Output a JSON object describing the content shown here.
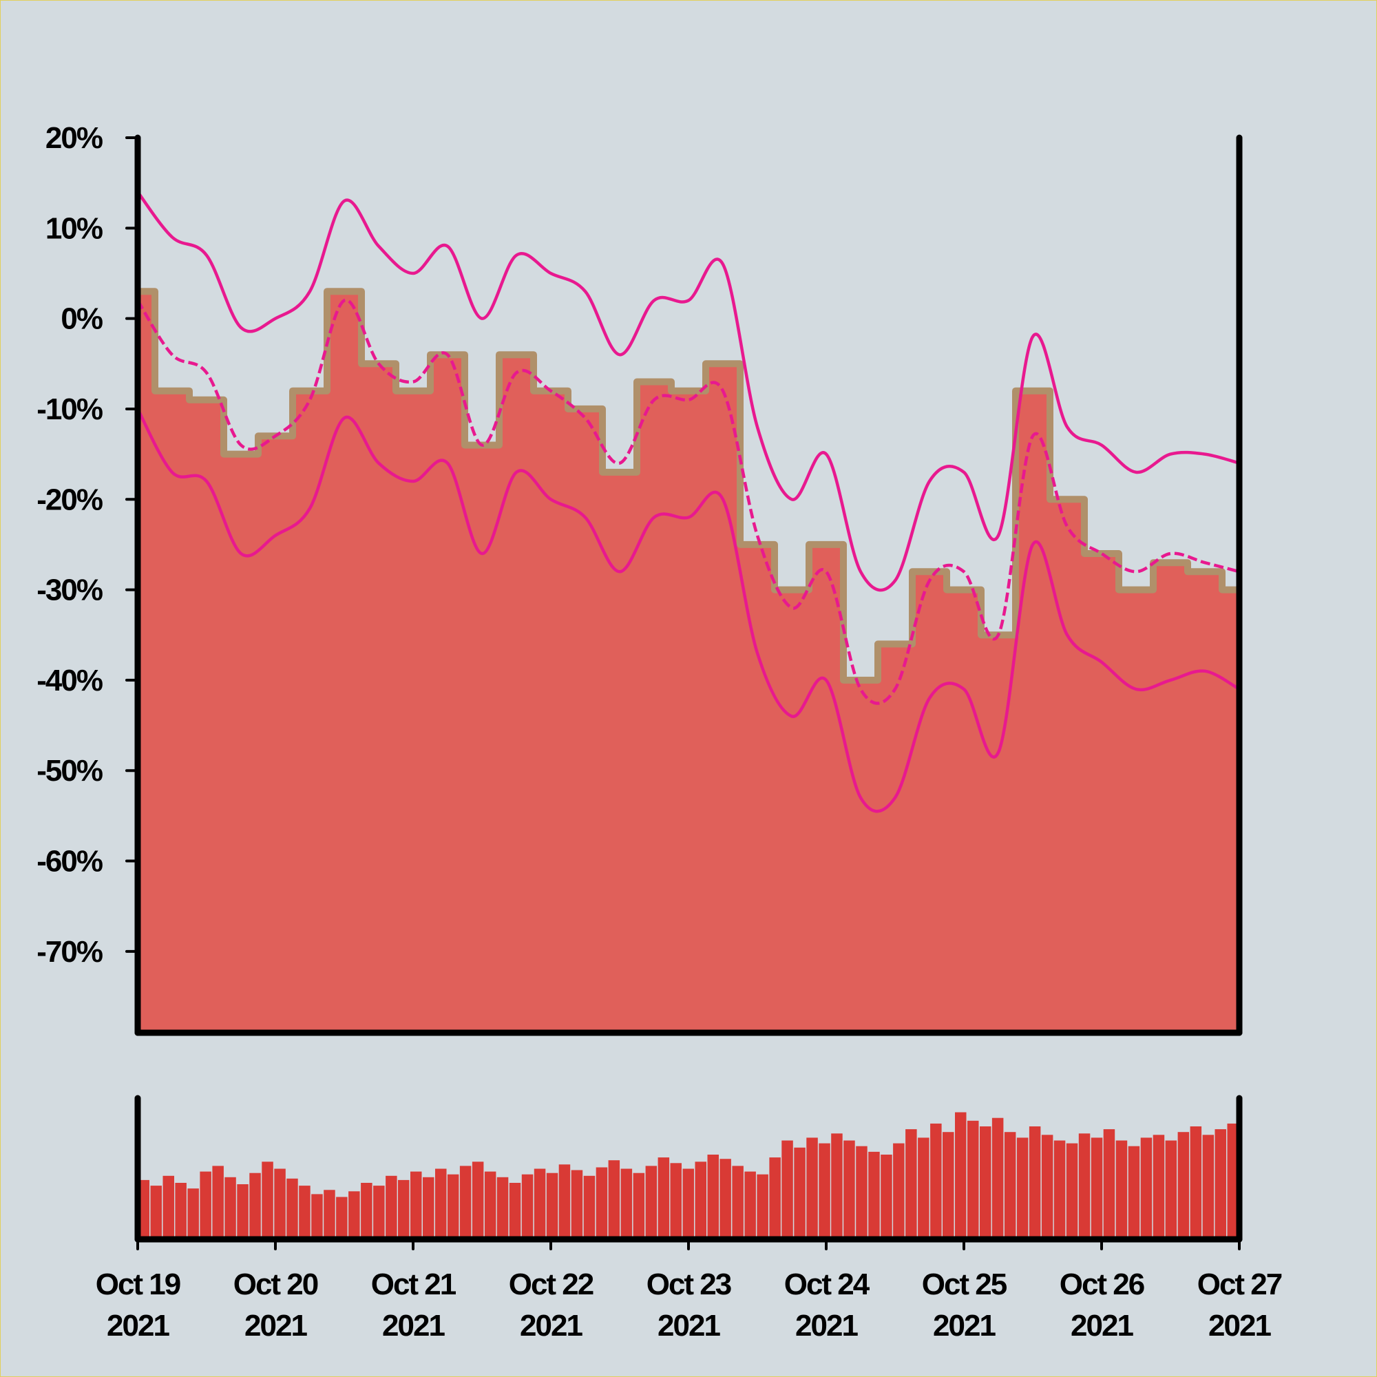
{
  "chart_data": {
    "type": "area",
    "title": "",
    "xlabel": "",
    "ylabel": "",
    "grid": false,
    "legend": "none",
    "y_ticks": [
      "20%",
      "10%",
      "0%",
      "-10%",
      "-20%",
      "-30%",
      "-40%",
      "-50%",
      "-60%",
      "-70%"
    ],
    "ylim": [
      -79,
      20
    ],
    "x_ticks": [
      {
        "line1": "Oct 19",
        "line2": "2021"
      },
      {
        "line1": "Oct 20",
        "line2": "2021"
      },
      {
        "line1": "Oct 21",
        "line2": "2021"
      },
      {
        "line1": "Oct 22",
        "line2": "2021"
      },
      {
        "line1": "Oct 23",
        "line2": "2021"
      },
      {
        "line1": "Oct 24",
        "line2": "2021"
      },
      {
        "line1": "Oct 25",
        "line2": "2021"
      },
      {
        "line1": "Oct 26",
        "line2": "2021"
      },
      {
        "line1": "Oct 27",
        "line2": "2021"
      }
    ],
    "xlim": [
      "2021-10-19",
      "2021-10-27"
    ],
    "x": [
      "2021-10-19 00:00",
      "2021-10-19 06:00",
      "2021-10-19 12:00",
      "2021-10-19 18:00",
      "2021-10-20 00:00",
      "2021-10-20 06:00",
      "2021-10-20 12:00",
      "2021-10-20 18:00",
      "2021-10-21 00:00",
      "2021-10-21 06:00",
      "2021-10-21 12:00",
      "2021-10-21 18:00",
      "2021-10-22 00:00",
      "2021-10-22 06:00",
      "2021-10-22 12:00",
      "2021-10-22 18:00",
      "2021-10-23 00:00",
      "2021-10-23 06:00",
      "2021-10-23 12:00",
      "2021-10-23 18:00",
      "2021-10-24 00:00",
      "2021-10-24 06:00",
      "2021-10-24 12:00",
      "2021-10-24 18:00",
      "2021-10-25 00:00",
      "2021-10-25 06:00",
      "2021-10-25 12:00",
      "2021-10-25 18:00",
      "2021-10-26 00:00",
      "2021-10-26 06:00",
      "2021-10-26 12:00",
      "2021-10-26 18:00",
      "2021-10-27 00:00"
    ],
    "series": [
      {
        "role": "upper band",
        "values": [
          14,
          9,
          7,
          -1,
          0,
          3,
          13,
          8,
          5,
          8,
          0,
          7,
          5,
          3,
          -4,
          2,
          2,
          6,
          -12,
          -20,
          -15,
          -28,
          -29,
          -18,
          -17,
          -24,
          -2,
          -12,
          -14,
          -17,
          -15,
          -15,
          -16
        ],
        "line": "solid",
        "color": "#e8198f"
      },
      {
        "role": "middle line",
        "values": [
          2,
          -4,
          -6,
          -14,
          -13,
          -9,
          2,
          -5,
          -7,
          -4,
          -14,
          -6,
          -8,
          -11,
          -16,
          -9,
          -9,
          -8,
          -24,
          -32,
          -28,
          -41,
          -41,
          -29,
          -28,
          -35,
          -13,
          -23,
          -26,
          -28,
          -26,
          -27,
          -28
        ],
        "line": "dashed",
        "color": "#e8198f"
      },
      {
        "role": "lower band",
        "values": [
          -10,
          -17,
          -18,
          -26,
          -24,
          -21,
          -11,
          -16,
          -18,
          -16,
          -26,
          -17,
          -20,
          -22,
          -28,
          -22,
          -22,
          -20,
          -37,
          -44,
          -40,
          -53,
          -53,
          -42,
          -41,
          -48,
          -25,
          -35,
          -38,
          -41,
          -40,
          -39,
          -41
        ],
        "line": "solid",
        "color": "#e8198f"
      },
      {
        "role": "fill",
        "values": [
          3,
          -8,
          -9,
          -15,
          -13,
          -8,
          3,
          -5,
          -8,
          -4,
          -14,
          -4,
          -8,
          -10,
          -17,
          -7,
          -8,
          -5,
          -25,
          -30,
          -25,
          -40,
          -36,
          -28,
          -30,
          -35,
          -8,
          -20,
          -26,
          -30,
          -27,
          -28,
          -30
        ],
        "color": "#e0605a"
      }
    ],
    "volume": {
      "type": "bar",
      "color": "#d93a35",
      "ylim": [
        0,
        100
      ],
      "values": [
        42,
        38,
        45,
        40,
        36,
        48,
        52,
        44,
        39,
        47,
        55,
        50,
        43,
        38,
        32,
        35,
        30,
        34,
        40,
        38,
        45,
        42,
        48,
        44,
        50,
        46,
        52,
        55,
        48,
        44,
        40,
        46,
        50,
        47,
        53,
        49,
        45,
        51,
        56,
        50,
        47,
        52,
        58,
        54,
        50,
        55,
        60,
        57,
        52,
        48,
        46,
        58,
        70,
        65,
        72,
        68,
        75,
        70,
        66,
        62,
        60,
        68,
        78,
        72,
        82,
        76,
        90,
        84,
        80,
        86,
        76,
        72,
        80,
        74,
        70,
        68,
        75,
        72,
        78,
        70,
        66,
        72,
        74,
        70,
        76,
        80,
        74,
        78,
        82
      ]
    }
  }
}
